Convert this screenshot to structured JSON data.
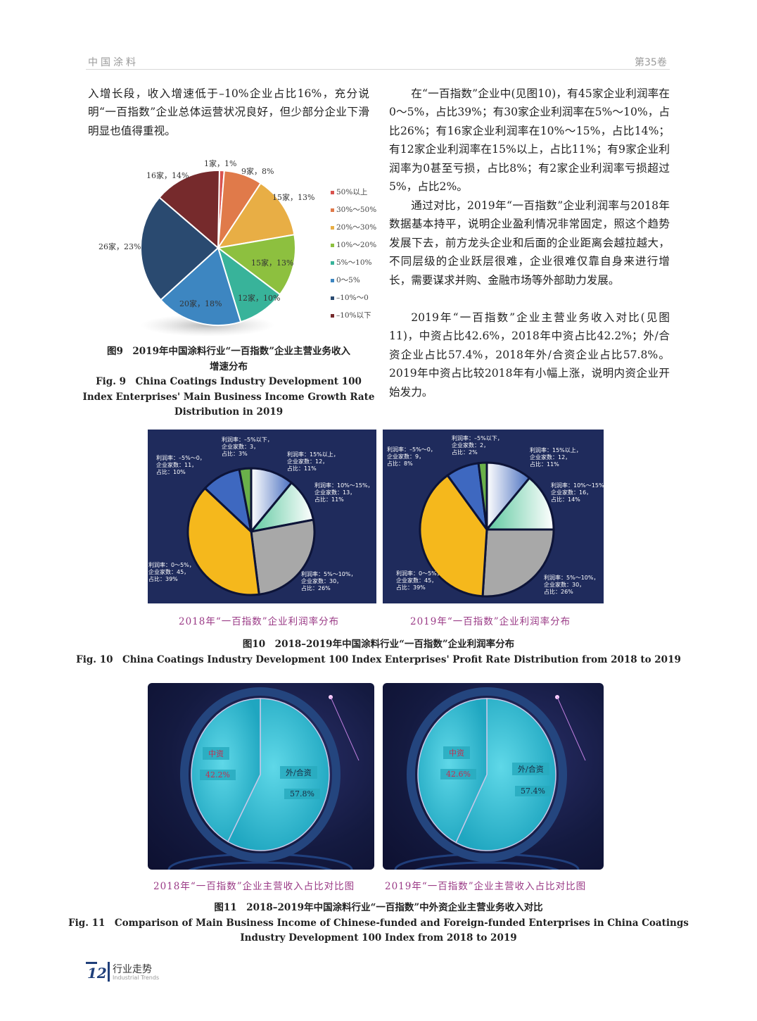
{
  "header": {
    "journal": "中国涂料",
    "volume": "第35卷"
  },
  "left_text": "入增长段，收入增速低于–10%企业占比16%，充分说明“一百指数”企业总体运营状况良好，但少部分企业下滑明显也值得重视。",
  "right_text": [
    "在“一百指数”企业中(见图10)，有45家企业利润率在0～5%，占比39%；有30家企业利润率在5%～10%，占比26%；有16家企业利润率在10%～15%，占比14%；有12家企业利润率在15%以上，占比11%；有9家企业利润率为0甚至亏损，占比8%；有2家企业利润率亏损超过5%，占比2%。",
    "通过对比，2019年“一百指数”企业利润率与2018年数据基本持平，说明企业盈利情况非常固定，照这个趋势发展下去，前方龙头企业和后面的企业距离会越拉越大，不同层级的企业跃层很难，企业很难仅靠自身来进行增长，需要谋求并购、金融市场等外部助力发展。",
    "2019年“一百指数”企业主营业务收入对比(见图11)，中资占比42.6%，2018年中资占比42.2%；外/合资企业占比57.4%，2018年外/合资企业占比57.8%。2019年中资占比较2018年有小幅上涨，说明内资企业开始发力。"
  ],
  "fig9": {
    "caption_cn_1": "图9　2019年中国涂料行业“一百指数”企业主营业务收入",
    "caption_cn_2": "增速分布",
    "caption_en_1": "Fig. 9　China Coatings Industry Development 100",
    "caption_en_2": "Index Enterprises' Main Business Income Growth Rate",
    "caption_en_3": "Distribution in 2019"
  },
  "fig10": {
    "sub_2018": "2018年“一百指数”企业利润率分布",
    "sub_2019": "2019年“一百指数”企业利润率分布",
    "caption_cn": "图10　2018–2019年中国涂料行业“一百指数”企业利润率分布",
    "caption_en": "Fig. 10　China Coatings Industry Development 100 Index Enterprises' Profit Rate Distribution from 2018 to 2019"
  },
  "fig11": {
    "sub_2018": "2018年“一百指数”企业主营收入占比对比图",
    "sub_2019": "2019年“一百指数”企业主营收入占比对比图",
    "caption_cn": "图11　2018–2019年中国涂料行业“一百指数”中外资企业主营业务收入对比",
    "caption_en_1": "Fig. 11　Comparison of Main Business Income of Chinese-funded and Foreign-funded Enterprises in China Coatings",
    "caption_en_2": "Industry Development 100 Index from 2018 to 2019"
  },
  "footer": {
    "page": "12",
    "section_cn": "行业走势",
    "section_en": "Industrial Trends"
  },
  "chart_data": [
    {
      "type": "pie",
      "categories": [
        "50%以上",
        "30%～50%",
        "20%～30%",
        "10%～20%",
        "5%～10%",
        "0～5%",
        "–10%～0",
        "–10%以下"
      ],
      "counts": [
        1,
        9,
        15,
        15,
        12,
        20,
        26,
        16
      ],
      "values": [
        1,
        8,
        13,
        13,
        10,
        18,
        23,
        14
      ],
      "data_labels": [
        "1家，1%",
        "9家，8%",
        "15家，13%",
        "15家，13%",
        "12家，10%",
        "20家，18%",
        "26家，23%",
        "16家，14%"
      ],
      "colors": [
        "#d9534f",
        "#e07a4a",
        "#e8ae45",
        "#8dc03f",
        "#38b39a",
        "#3d86c1",
        "#2a4a70",
        "#762a2c"
      ],
      "legend": "right"
    },
    {
      "type": "pie",
      "year": "2018",
      "categories": [
        "15%以上",
        "10%～15%",
        "5%～10%",
        "0～5%",
        "–5%～0",
        "–5%以下"
      ],
      "counts": [
        12,
        13,
        30,
        45,
        11,
        3
      ],
      "values": [
        11,
        11,
        26,
        39,
        10,
        3
      ],
      "data_labels": [
        "利润率：15%以上，\n企业家数：12，\n占比：11%",
        "利润率：10%～15%，\n企业家数：13，\n占比：11%",
        "利润率：5%～10%，\n企业家数：30，\n占比：26%",
        "利润率：0～5%，\n企业家数：45，\n占比：39%",
        "利润率：–5%～0，\n企业家数：11，\n占比：10%",
        "利润率：–5%以下，\n企业家数：3，\n占比：3%"
      ],
      "colors": [
        "#4a70c0",
        "#5fc9a0",
        "#a8a8a8",
        "#f5b81c",
        "#3e68c0",
        "#6ab04a"
      ]
    },
    {
      "type": "pie",
      "year": "2019",
      "categories": [
        "15%以上",
        "10%～15%",
        "5%～10%",
        "0～5%",
        "–5%～0",
        "–5%以下"
      ],
      "counts": [
        12,
        16,
        30,
        45,
        9,
        2
      ],
      "values": [
        11,
        14,
        26,
        39,
        8,
        2
      ],
      "data_labels": [
        "利润率：15%以上，\n企业家数：12，\n占比：11%",
        "利润率：10%～15%，\n企业家数：16，\n占比：14%",
        "利润率：5%～10%，\n企业家数：30，\n占比：26%",
        "利润率：0～5%，\n企业家数：45，\n占比：39%",
        "利润率：–5%～0，\n企业家数：9，\n占比：8%",
        "利润率：–5%以下，\n企业家数：2，\n占比：2%"
      ],
      "colors": [
        "#4a70c0",
        "#5fc9a0",
        "#a8a8a8",
        "#f5b81c",
        "#3e68c0",
        "#6ab04a"
      ]
    },
    {
      "type": "pie",
      "year": "2018",
      "categories": [
        "外/合资",
        "中资"
      ],
      "values": [
        57.8,
        42.2
      ],
      "data_labels": [
        "57.8%",
        "42.2%"
      ]
    },
    {
      "type": "pie",
      "year": "2019",
      "categories": [
        "外/合资",
        "中资"
      ],
      "values": [
        57.4,
        42.6
      ],
      "data_labels": [
        "57.4%",
        "42.6%"
      ]
    }
  ]
}
